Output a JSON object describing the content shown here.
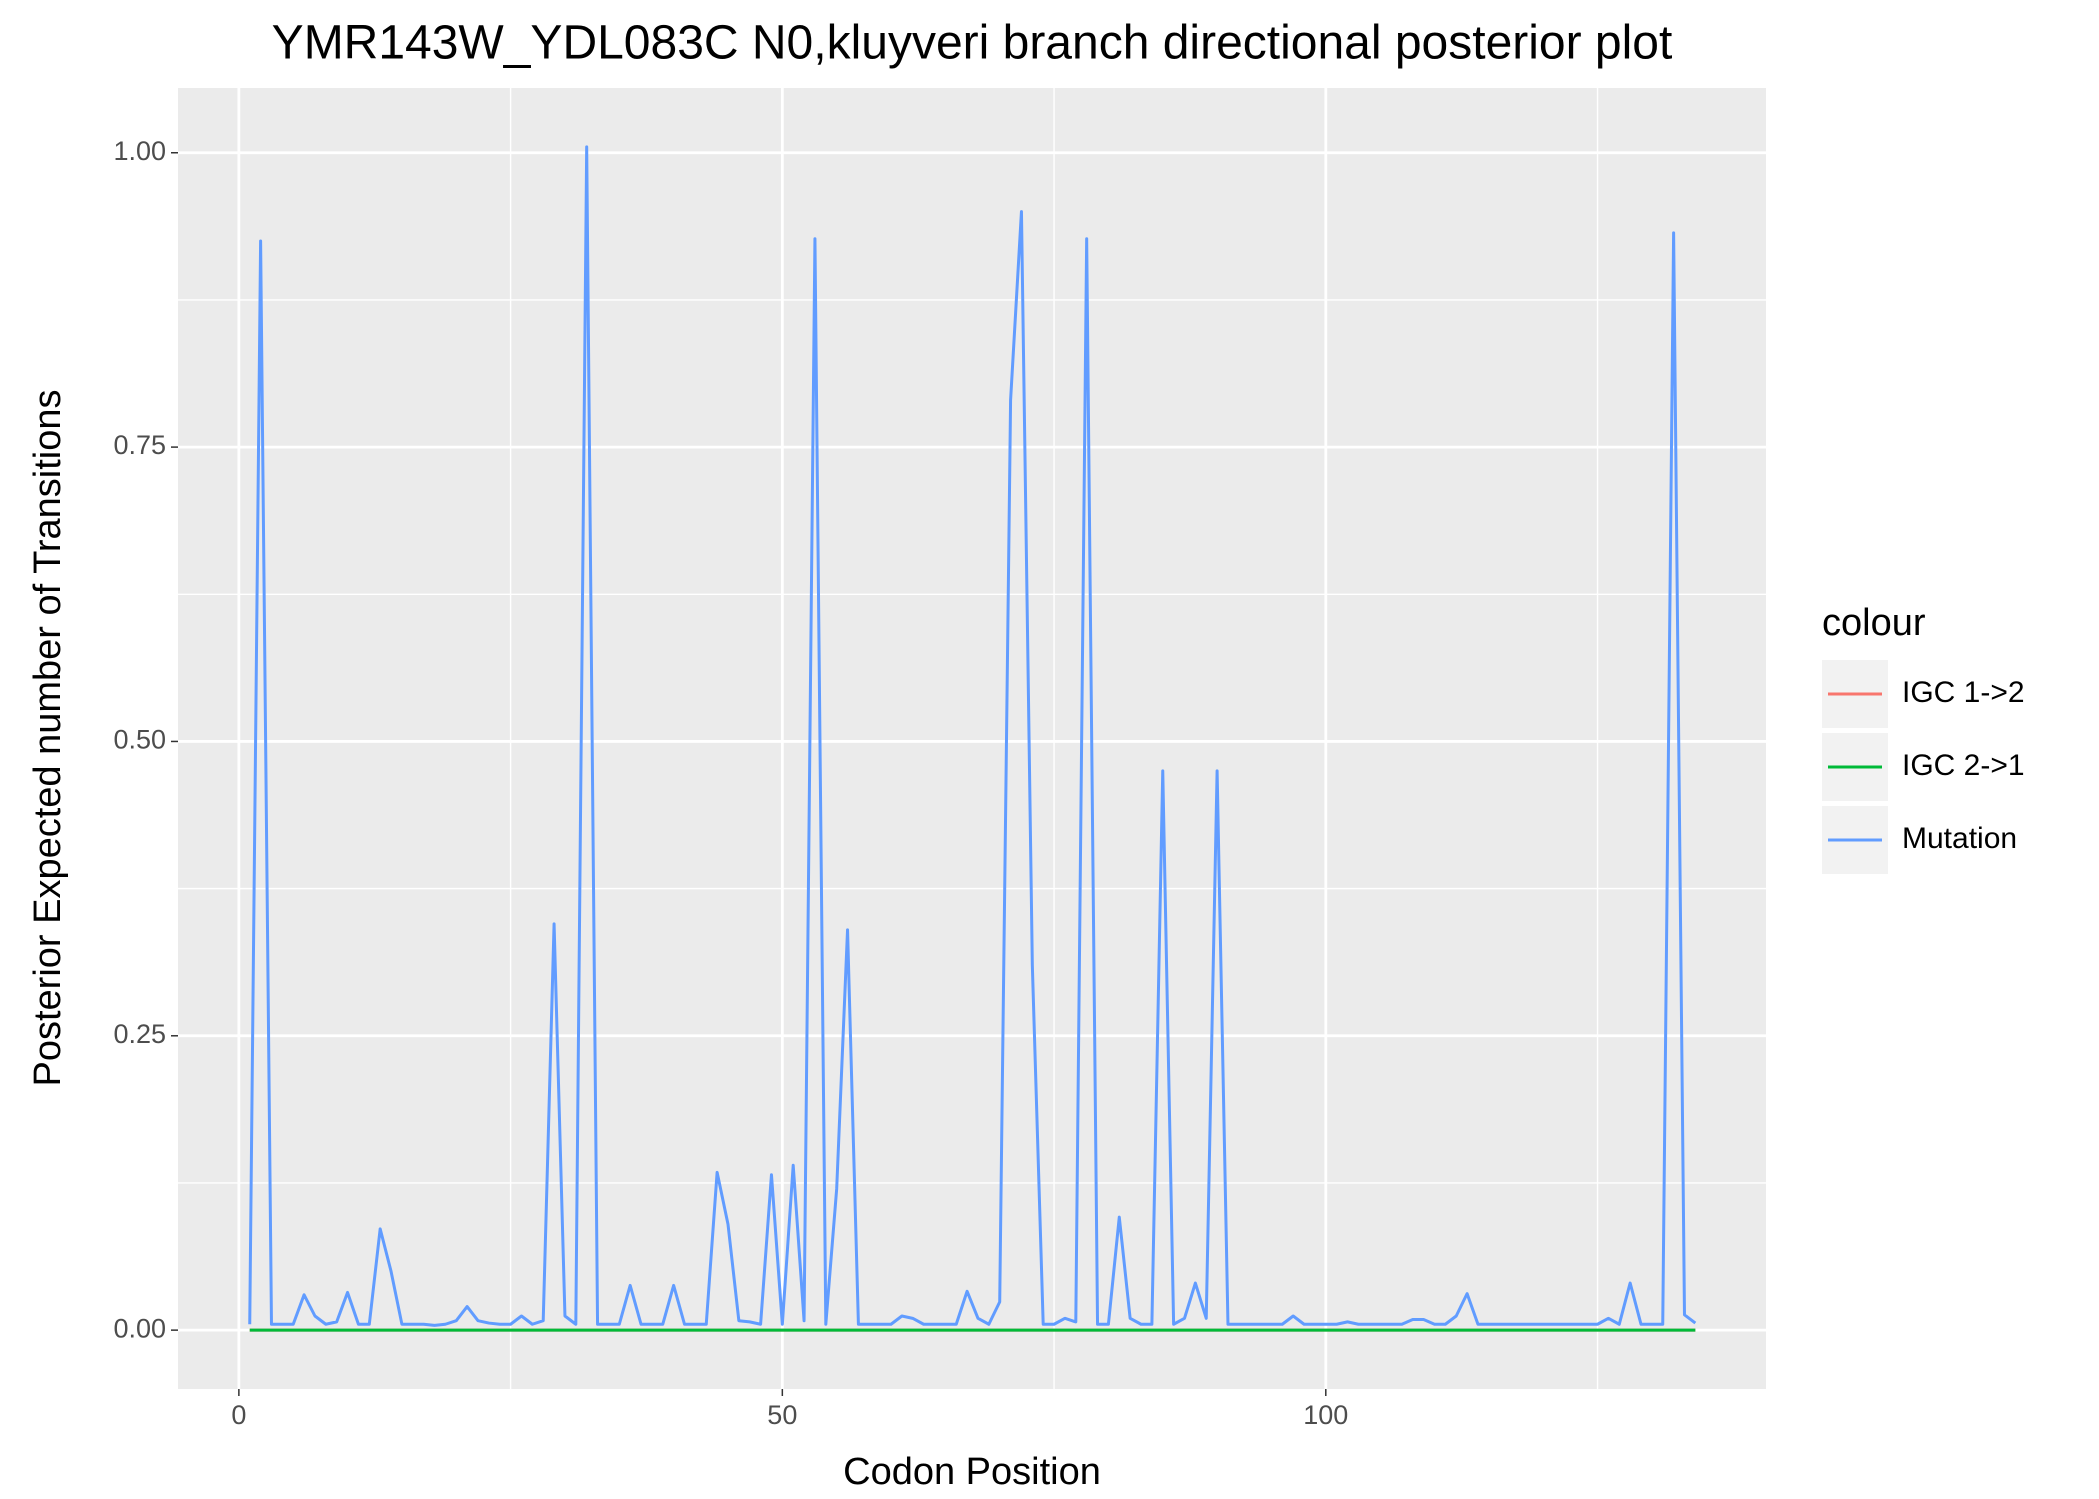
{
  "chart_data": {
    "type": "line",
    "title": "YMR143W_YDL083C N0,kluyveri branch directional posterior plot",
    "x_label": "Codon Position",
    "y_label": "Posterior Expected number of Transitions",
    "legend_title": "colour",
    "legend_position": "right",
    "grid": true,
    "xlim": [
      -5.6,
      140.5
    ],
    "ylim": [
      -0.05,
      1.055
    ],
    "xticks": [
      0,
      50,
      100
    ],
    "yticks": [
      {
        "value": 0,
        "label": "0.00"
      },
      {
        "value": 0.25,
        "label": "0.25"
      },
      {
        "value": 0.5,
        "label": "0.50"
      },
      {
        "value": 0.75,
        "label": "0.75"
      },
      {
        "value": 1,
        "label": "1.00"
      }
    ],
    "x": [
      1,
      2,
      3,
      4,
      5,
      6,
      7,
      8,
      9,
      10,
      11,
      12,
      13,
      14,
      15,
      16,
      17,
      18,
      19,
      20,
      21,
      22,
      23,
      24,
      25,
      26,
      27,
      28,
      29,
      30,
      31,
      32,
      33,
      34,
      35,
      36,
      37,
      38,
      39,
      40,
      41,
      42,
      43,
      44,
      45,
      46,
      47,
      48,
      49,
      50,
      51,
      52,
      53,
      54,
      55,
      56,
      57,
      58,
      59,
      60,
      61,
      62,
      63,
      64,
      65,
      66,
      67,
      68,
      69,
      70,
      71,
      72,
      73,
      74,
      75,
      76,
      77,
      78,
      79,
      80,
      81,
      82,
      83,
      84,
      85,
      86,
      87,
      88,
      89,
      90,
      91,
      92,
      93,
      94,
      95,
      96,
      97,
      98,
      99,
      100,
      101,
      102,
      103,
      104,
      105,
      106,
      107,
      108,
      109,
      110,
      111,
      112,
      113,
      114,
      115,
      116,
      117,
      118,
      119,
      120,
      121,
      122,
      123,
      124,
      125,
      126,
      127,
      128,
      129,
      130,
      131,
      132,
      133,
      134
    ],
    "series": [
      {
        "name": "IGC 1->2",
        "color": "#F8766D",
        "values": [
          0,
          0,
          0,
          0,
          0,
          0,
          0,
          0,
          0,
          0,
          0,
          0,
          0,
          0,
          0,
          0,
          0,
          0,
          0,
          0,
          0,
          0,
          0,
          0,
          0,
          0,
          0,
          0,
          0,
          0,
          0,
          0,
          0,
          0,
          0,
          0,
          0,
          0,
          0,
          0,
          0,
          0,
          0,
          0,
          0,
          0,
          0,
          0,
          0,
          0,
          0,
          0,
          0,
          0,
          0,
          0,
          0,
          0,
          0,
          0,
          0,
          0,
          0,
          0,
          0,
          0,
          0,
          0,
          0,
          0,
          0,
          0,
          0,
          0,
          0,
          0,
          0,
          0,
          0,
          0,
          0,
          0,
          0,
          0,
          0,
          0,
          0,
          0,
          0,
          0,
          0,
          0,
          0,
          0,
          0,
          0,
          0,
          0,
          0,
          0,
          0,
          0,
          0,
          0,
          0,
          0,
          0,
          0,
          0,
          0,
          0,
          0,
          0,
          0,
          0,
          0,
          0,
          0,
          0,
          0,
          0,
          0,
          0,
          0,
          0,
          0,
          0,
          0,
          0,
          0,
          0,
          0,
          0,
          0
        ]
      },
      {
        "name": "IGC 2->1",
        "color": "#00BA38",
        "values": [
          0,
          0,
          0,
          0,
          0,
          0,
          0,
          0,
          0,
          0,
          0,
          0,
          0,
          0,
          0,
          0,
          0,
          0,
          0,
          0,
          0,
          0,
          0,
          0,
          0,
          0,
          0,
          0,
          0,
          0,
          0,
          0,
          0,
          0,
          0,
          0,
          0,
          0,
          0,
          0,
          0,
          0,
          0,
          0,
          0,
          0,
          0,
          0,
          0,
          0,
          0,
          0,
          0,
          0,
          0,
          0,
          0,
          0,
          0,
          0,
          0,
          0,
          0,
          0,
          0,
          0,
          0,
          0,
          0,
          0,
          0,
          0,
          0,
          0,
          0,
          0,
          0,
          0,
          0,
          0,
          0,
          0,
          0,
          0,
          0,
          0,
          0,
          0,
          0,
          0,
          0,
          0,
          0,
          0,
          0,
          0,
          0,
          0,
          0,
          0,
          0,
          0,
          0,
          0,
          0,
          0,
          0,
          0,
          0,
          0,
          0,
          0,
          0,
          0,
          0,
          0,
          0,
          0,
          0,
          0,
          0,
          0,
          0,
          0,
          0,
          0,
          0,
          0,
          0,
          0,
          0,
          0,
          0,
          0
        ]
      },
      {
        "name": "Mutation",
        "color": "#619CFF",
        "values": [
          0.005,
          0.925,
          0.005,
          0.005,
          0.005,
          0.03,
          0.012,
          0.005,
          0.007,
          0.032,
          0.005,
          0.005,
          0.086,
          0.05,
          0.005,
          0.005,
          0.005,
          0.004,
          0.005,
          0.008,
          0.02,
          0.008,
          0.006,
          0.005,
          0.005,
          0.012,
          0.005,
          0.008,
          0.345,
          0.012,
          0.005,
          1.005,
          0.005,
          0.005,
          0.005,
          0.038,
          0.005,
          0.005,
          0.005,
          0.038,
          0.005,
          0.005,
          0.005,
          0.134,
          0.09,
          0.008,
          0.007,
          0.005,
          0.132,
          0.005,
          0.14,
          0.008,
          0.927,
          0.005,
          0.12,
          0.34,
          0.005,
          0.005,
          0.005,
          0.005,
          0.012,
          0.01,
          0.005,
          0.005,
          0.005,
          0.005,
          0.033,
          0.01,
          0.005,
          0.024,
          0.79,
          0.95,
          0.31,
          0.005,
          0.005,
          0.01,
          0.007,
          0.927,
          0.005,
          0.005,
          0.096,
          0.01,
          0.005,
          0.005,
          0.475,
          0.005,
          0.01,
          0.04,
          0.01,
          0.475,
          0.005,
          0.005,
          0.005,
          0.005,
          0.005,
          0.005,
          0.012,
          0.005,
          0.005,
          0.005,
          0.005,
          0.007,
          0.005,
          0.005,
          0.005,
          0.005,
          0.005,
          0.009,
          0.009,
          0.005,
          0.005,
          0.012,
          0.031,
          0.005,
          0.005,
          0.005,
          0.005,
          0.005,
          0.005,
          0.005,
          0.005,
          0.005,
          0.005,
          0.005,
          0.005,
          0.01,
          0.005,
          0.04,
          0.005,
          0.005,
          0.005,
          0.932,
          0.013,
          0.006
        ]
      }
    ]
  }
}
